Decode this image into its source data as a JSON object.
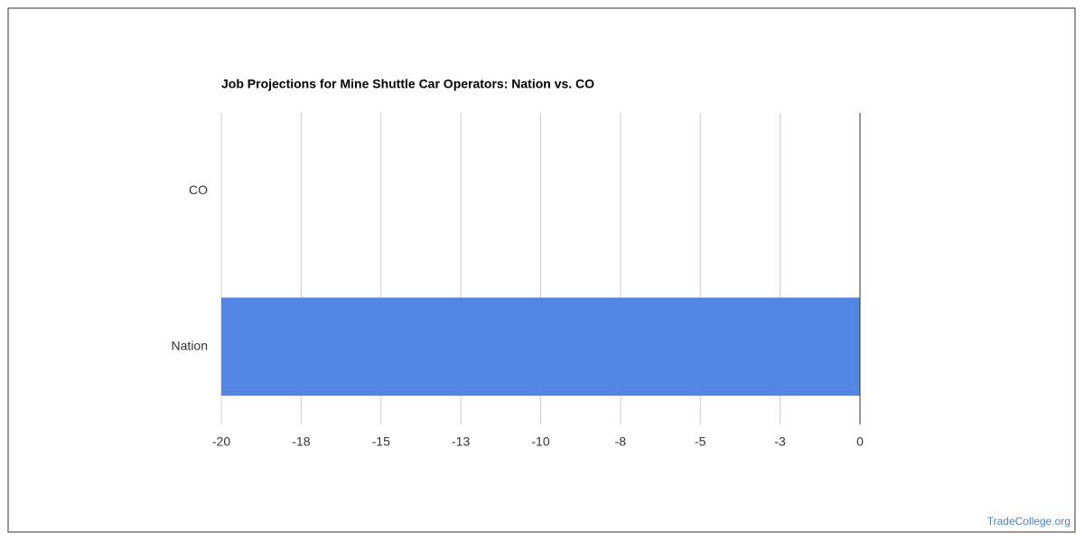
{
  "chart_data": {
    "type": "hbar",
    "title": "Job Projections for Mine Shuttle Car Operators: Nation vs. CO",
    "categories": [
      "CO",
      "Nation"
    ],
    "values": [
      0,
      -20
    ],
    "color": "#5386e4",
    "xlim": [
      -20,
      0
    ],
    "xticks": [
      -20,
      {
        "value": -17.5,
        "label": "-18"
      },
      -15,
      {
        "value": -12.5,
        "label": "-13"
      },
      -10,
      {
        "value": -7.5,
        "label": "-8"
      },
      -5,
      {
        "value": -2.5,
        "label": "-3"
      },
      0
    ],
    "grid": true
  },
  "watermark": "TradeCollege.org"
}
